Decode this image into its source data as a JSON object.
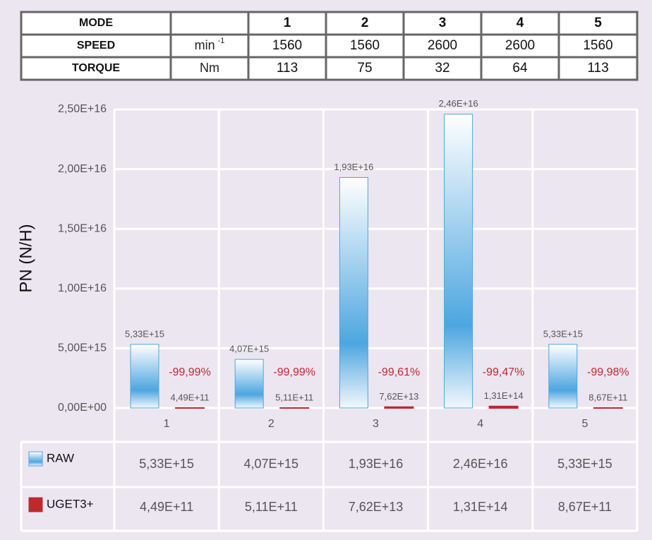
{
  "spec_table": {
    "rows": [
      {
        "label": "MODE",
        "cells": [
          1,
          2,
          3,
          4,
          5
        ]
      },
      {
        "label": "SPEED",
        "unit": "min",
        "unit_sup": "-1",
        "cells": [
          1560,
          1560,
          2600,
          2600,
          1560
        ]
      },
      {
        "label": "TORQUE",
        "unit": "Nm",
        "cells": [
          113,
          75,
          32,
          64,
          113
        ]
      }
    ]
  },
  "chart_data": {
    "type": "bar",
    "y_label": "PN (N/H)",
    "categories": [
      "1",
      "2",
      "3",
      "4",
      "5"
    ],
    "series": [
      {
        "name": "RAW",
        "color": "#4da6e0",
        "values": [
          5330000000000000.0,
          4070000000000000.0,
          1.93e+16,
          2.46e+16,
          5330000000000000.0
        ],
        "value_labels": [
          "5,33E+15",
          "4,07E+15",
          "1,93E+16",
          "2,46E+16",
          "5,33E+15"
        ]
      },
      {
        "name": "UGET3+",
        "color": "#c0282d",
        "values": [
          449000000000.0,
          511000000000.0,
          76200000000000.0,
          131000000000000.0,
          867000000000.0
        ],
        "value_labels": [
          "4,49E+11",
          "5,11E+11",
          "7,62E+13",
          "1,31E+14",
          "8,67E+11"
        ]
      }
    ],
    "reduction_labels": [
      "-99,99%",
      "-99,99%",
      "-99,61%",
      "-99,47%",
      "-99,98%"
    ],
    "ylim": [
      0,
      2.5e+16
    ],
    "yticks": [
      {
        "value": 0,
        "label": "0,00E+00"
      },
      {
        "value": 5000000000000000.0,
        "label": "5,00E+15"
      },
      {
        "value": 1e+16,
        "label": "1,00E+16"
      },
      {
        "value": 1.5e+16,
        "label": "1,50E+16"
      },
      {
        "value": 2e+16,
        "label": "2,00E+16"
      },
      {
        "value": 2.5e+16,
        "label": "2,50E+16"
      }
    ],
    "grid": true
  }
}
